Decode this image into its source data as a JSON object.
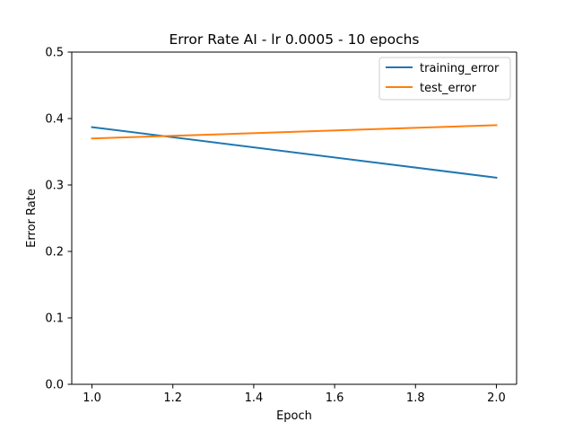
{
  "chart_data": {
    "type": "line",
    "title": "Error Rate AI - lr 0.0005 - 10 epochs",
    "xlabel": "Epoch",
    "ylabel": "Error Rate",
    "xlim": [
      0.95,
      2.05
    ],
    "ylim": [
      0.0,
      0.5
    ],
    "xticks": [
      1.0,
      1.2,
      1.4,
      1.6,
      1.8,
      2.0
    ],
    "xtick_labels": [
      "1.0",
      "1.2",
      "1.4",
      "1.6",
      "1.8",
      "2.0"
    ],
    "yticks": [
      0.0,
      0.1,
      0.2,
      0.3,
      0.4,
      0.5
    ],
    "ytick_labels": [
      "0.0",
      "0.1",
      "0.2",
      "0.3",
      "0.4",
      "0.5"
    ],
    "grid": false,
    "legend_position": "top-right",
    "series": [
      {
        "name": "training_error",
        "color": "#1f77b4",
        "x": [
          1,
          2
        ],
        "y": [
          0.387,
          0.311
        ]
      },
      {
        "name": "test_error",
        "color": "#ff7f0e",
        "x": [
          1,
          2
        ],
        "y": [
          0.37,
          0.39
        ]
      }
    ]
  }
}
